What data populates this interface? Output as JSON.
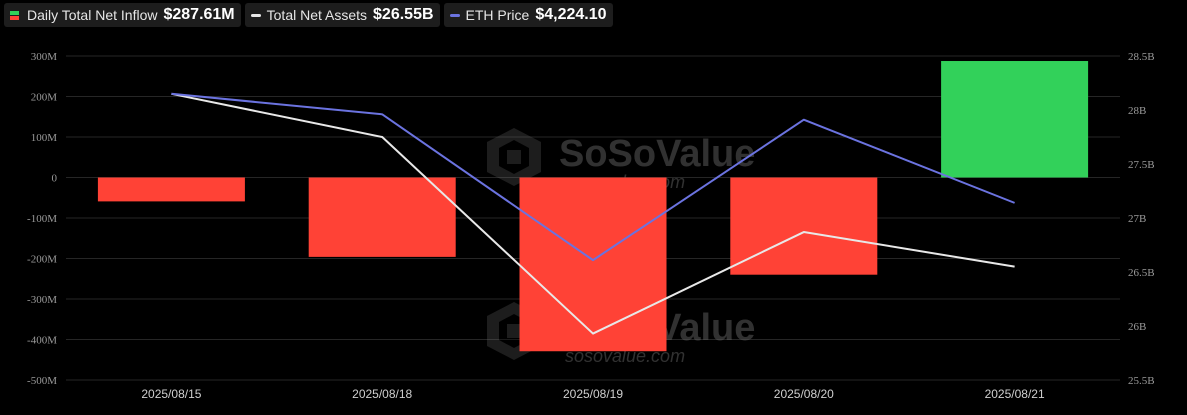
{
  "legend": {
    "inflow": {
      "label": "Daily Total Net Inflow",
      "value": "$287.61M"
    },
    "assets": {
      "label": "Total Net Assets",
      "value": "$26.55B"
    },
    "eth": {
      "label": "ETH Price",
      "value": "$4,224.10"
    }
  },
  "watermark": {
    "brand": "SoSoValue",
    "url": "sosovalue.com"
  },
  "colors": {
    "positive": "#32d15a",
    "negative": "#ff4236",
    "assets_line": "#e8e8e8",
    "eth_line": "#6b73e0",
    "grid": "#262626",
    "tick_text": "#9a9a9a"
  },
  "chart_data": {
    "type": "bar",
    "categories": [
      "2025/08/15",
      "2025/08/18",
      "2025/08/19",
      "2025/08/20",
      "2025/08/21"
    ],
    "left_axis": {
      "ticks": [
        "300M",
        "200M",
        "100M",
        "0",
        "-100M",
        "-200M",
        "-300M",
        "-400M",
        "-500M"
      ],
      "min": -500,
      "max": 300,
      "unit": "M"
    },
    "right_axis": {
      "ticks": [
        "28.5B",
        "28B",
        "27.5B",
        "27B",
        "26.5B",
        "26B",
        "25.5B"
      ],
      "min": 25.5,
      "max": 28.5,
      "unit": "B"
    },
    "grid": true,
    "legend_position": "top-left",
    "series": [
      {
        "name": "Daily Total Net Inflow",
        "type": "bar",
        "axis": "left",
        "values": [
          -59,
          -196,
          -429,
          -240,
          287.61
        ]
      },
      {
        "name": "Total Net Assets",
        "type": "line",
        "axis": "right",
        "values": [
          28.15,
          27.75,
          25.93,
          26.87,
          26.55
        ]
      },
      {
        "name": "ETH Price",
        "type": "line",
        "axis": "right",
        "values": [
          28.15,
          27.96,
          26.61,
          27.91,
          27.14
        ]
      }
    ]
  }
}
